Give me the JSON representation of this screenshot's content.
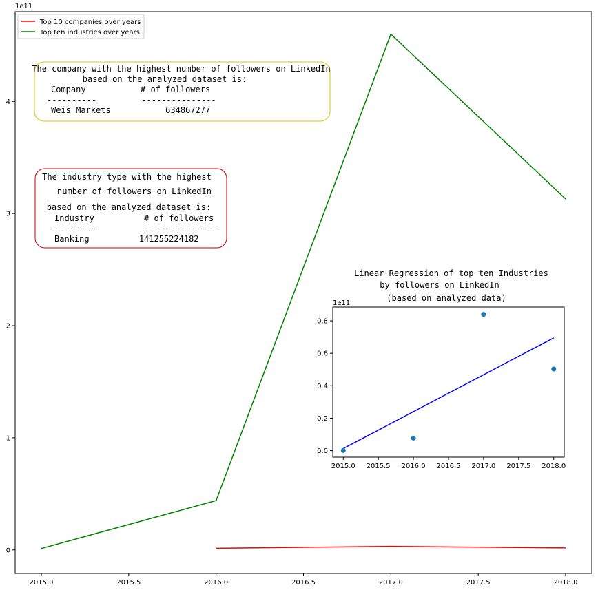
{
  "chart_data": [
    {
      "type": "line",
      "title": "",
      "xlabel": "",
      "ylabel": "",
      "offset_label": "1e11",
      "xlim": [
        2014.85,
        2018.15
      ],
      "ylim": [
        -0.21,
        4.8
      ],
      "xticks": [
        2015.0,
        2015.5,
        2016.0,
        2016.5,
        2017.0,
        2017.5,
        2018.0
      ],
      "xtick_labels": [
        "2015.0",
        "2015.5",
        "2016.0",
        "2016.5",
        "2017.0",
        "2017.5",
        "2018.0"
      ],
      "yticks": [
        0,
        1,
        2,
        3,
        4
      ],
      "ytick_labels": [
        "0",
        "1",
        "2",
        "3",
        "4"
      ],
      "legend": "top-left",
      "series": [
        {
          "name": "Top 10 companies over years",
          "color": "#ff0000",
          "x": [
            2016,
            2017,
            2018
          ],
          "y": [
            0.015,
            0.032,
            0.018
          ]
        },
        {
          "name": "Top ten industries over years",
          "color": "#008000",
          "x": [
            2015,
            2016,
            2017,
            2018
          ],
          "y": [
            0.013,
            0.44,
            4.6,
            3.13
          ]
        }
      ],
      "annotations": [
        {
          "id": "company",
          "border_color": "#cccc00",
          "lines": [
            "The company with the highest number of followers on LinkedIn",
            "based on the analyzed dataset is:",
            "Company           # of followers",
            "----------         ---------------",
            "Weis Markets           634867277"
          ]
        },
        {
          "id": "industry",
          "border_color": "#cc0000",
          "lines": [
            "The industry type with the highest",
            "number of followers on LinkedIn",
            "based on the analyzed dataset is:",
            "Industry          # of followers",
            "----------         ---------------",
            "Banking          141255224182"
          ]
        }
      ]
    },
    {
      "type": "scatter",
      "title_lines": [
        "Linear Regression of top ten Industries",
        "by followers on LinkedIn",
        "(based on analyzed data)"
      ],
      "offset_label": "1e11",
      "xlim": [
        2014.85,
        2018.15
      ],
      "ylim": [
        -0.04,
        0.885
      ],
      "xticks": [
        2015.0,
        2015.5,
        2016.0,
        2016.5,
        2017.0,
        2017.5,
        2018.0
      ],
      "xtick_labels": [
        "2015.0",
        "2015.5",
        "2016.0",
        "2016.5",
        "2017.0",
        "2017.5",
        "2018.0"
      ],
      "yticks": [
        0.0,
        0.2,
        0.4,
        0.6,
        0.8
      ],
      "ytick_labels": [
        "0.0",
        "0.2",
        "0.4",
        "0.6",
        "0.8"
      ],
      "points": {
        "color": "#1f77b4",
        "x": [
          2015,
          2016,
          2017,
          2018
        ],
        "y": [
          0.001,
          0.077,
          0.84,
          0.503
        ]
      },
      "regression": {
        "color": "#0000ff",
        "x": [
          2015,
          2018
        ],
        "y": [
          0.013,
          0.695
        ]
      }
    }
  ]
}
